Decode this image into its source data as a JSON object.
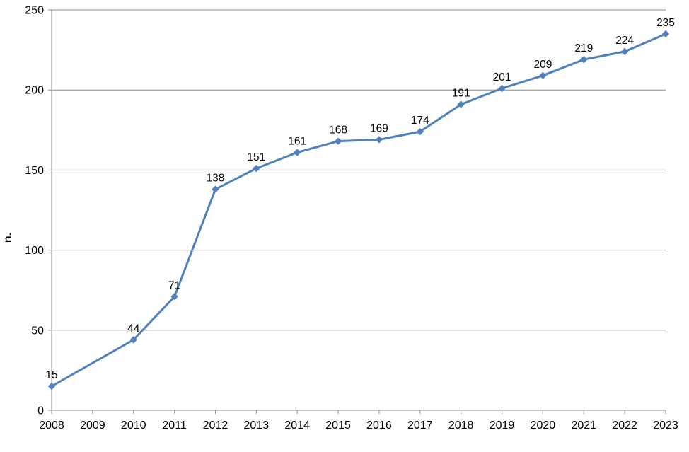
{
  "chart_data": {
    "type": "line",
    "title": "",
    "xlabel": "",
    "ylabel": "n.",
    "categories": [
      "2008",
      "2009",
      "2010",
      "2011",
      "2012",
      "2013",
      "2014",
      "2015",
      "2016",
      "2017",
      "2018",
      "2019",
      "2020",
      "2021",
      "2022",
      "2023"
    ],
    "series": [
      {
        "name": "n.",
        "values": [
          15,
          null,
          44,
          71,
          138,
          151,
          161,
          168,
          169,
          174,
          191,
          201,
          209,
          219,
          224,
          235
        ],
        "color": "#4F81BD",
        "marker": "diamond",
        "show_data_labels": true
      }
    ],
    "ylim": [
      0,
      250
    ],
    "ytick_step": 50,
    "grid": true,
    "legend_position": "none",
    "colors": {
      "line": "#4F81BD",
      "axis": "#8C8C8C",
      "gridline": "#8C8C8C",
      "label_text": "#000000",
      "background": "#FFFFFF"
    }
  }
}
